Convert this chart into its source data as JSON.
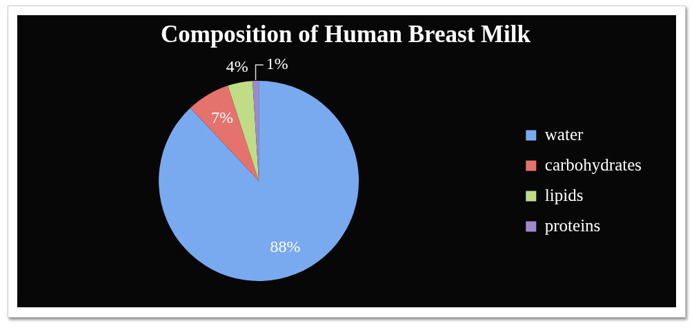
{
  "chart_data": {
    "type": "pie",
    "title": "Composition of Human Breast Milk",
    "categories": [
      "water",
      "carbohydrates",
      "lipids",
      "proteins"
    ],
    "values": [
      88,
      7,
      4,
      1
    ],
    "colors": [
      "#79a9ee",
      "#e5726c",
      "#bfdc86",
      "#9d8acb"
    ],
    "value_labels": [
      "88%",
      "7%",
      "4%",
      "1%"
    ],
    "legend": "right"
  }
}
